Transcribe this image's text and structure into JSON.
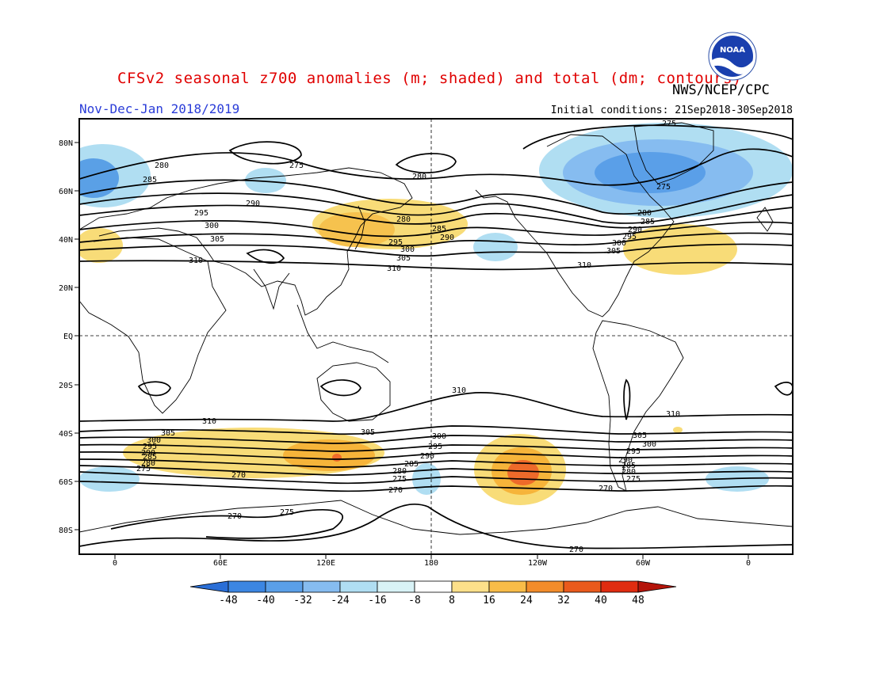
{
  "header": {
    "title": "CFSv2 seasonal z700 anomalies (m; shaded) and total (dm; contours)",
    "agency": "NWS/NCEP/CPC",
    "season": "Nov-Dec-Jan 2018/2019",
    "initial_conditions": "Initial conditions: 21Sep2018-30Sep2018",
    "logo_text": "NOAA"
  },
  "map": {
    "lat_labels": [
      "80N",
      "60N",
      "40N",
      "20N",
      "EQ",
      "20S",
      "40S",
      "60S",
      "80S"
    ],
    "lon_labels": [
      "0",
      "60E",
      "120E",
      "180",
      "120W",
      "60W",
      "0"
    ],
    "contour_values_dm": [
      270,
      275,
      280,
      285,
      290,
      295,
      300,
      305,
      310
    ],
    "colors": {
      "neg_strong": "#2a78d8",
      "neg_mid": "#5aa0e6",
      "neg_light": "#a8d8f0",
      "pos_light": "#f8dc78",
      "pos_mid": "#f6b43a",
      "pos_strong": "#ee6a2a"
    }
  },
  "colorbar": {
    "labels": [
      "-48",
      "-40",
      "-32",
      "-24",
      "-16",
      "-8",
      "8",
      "16",
      "24",
      "32",
      "40",
      "48"
    ],
    "colors": [
      "#2a6ed6",
      "#3c86e2",
      "#5a9fe8",
      "#86bcf0",
      "#b0def2",
      "#d8f2f6",
      "#ffffff",
      "#fde08a",
      "#f8bc48",
      "#f28c2a",
      "#ea5a1c",
      "#e02c10",
      "#b4140a"
    ]
  }
}
